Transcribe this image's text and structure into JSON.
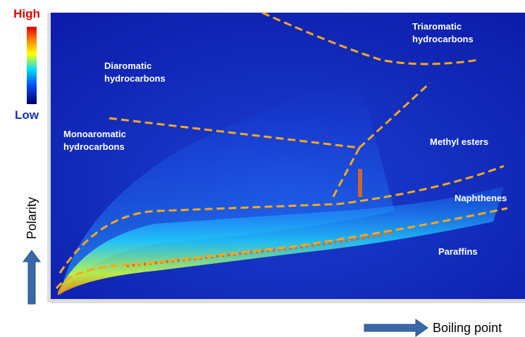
{
  "colorbar": {
    "high": "High",
    "low": "Low"
  },
  "regions": [
    {
      "lines": [
        "Triaromatic",
        "hydrocarbons"
      ]
    },
    {
      "lines": [
        "Diaromatic",
        "hydrocarbons"
      ]
    },
    {
      "lines": [
        "Monoaromatic",
        "hydrocarbons"
      ]
    },
    {
      "lines": [
        "Methyl esters"
      ]
    },
    {
      "lines": [
        "Naphthenes"
      ]
    },
    {
      "lines": [
        "Paraffins"
      ]
    }
  ],
  "axes": {
    "y": "Polarity",
    "x": "Boiling point"
  }
}
